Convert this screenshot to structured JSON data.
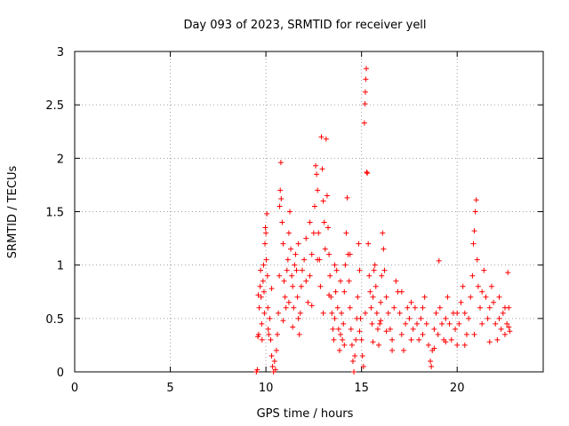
{
  "chart_data": {
    "type": "scatter",
    "title": "Day 093 of 2023, SRMTID for receiver yell",
    "xlabel": "GPS time / hours",
    "ylabel": "SRMTID / TECUs",
    "xlim": [
      0,
      24.5
    ],
    "ylim": [
      0,
      3
    ],
    "xticks": [
      0,
      5,
      10,
      15,
      20
    ],
    "yticks": [
      0,
      0.5,
      1,
      1.5,
      2,
      2.5,
      3
    ],
    "ytick_labels": [
      "0",
      "0.5",
      "1",
      "1.5",
      "2",
      "2.5",
      "3"
    ],
    "grid": true,
    "marker": "+",
    "series_color": "#ff0000",
    "series": [
      {
        "name": "SRMTID",
        "points": [
          [
            9.5,
            0.0
          ],
          [
            9.55,
            0.02
          ],
          [
            9.58,
            0.33
          ],
          [
            9.62,
            0.35
          ],
          [
            9.65,
            0.6
          ],
          [
            9.7,
            0.8
          ],
          [
            9.72,
            0.95
          ],
          [
            9.75,
            0.7
          ],
          [
            9.78,
            0.45
          ],
          [
            9.8,
            0.3
          ],
          [
            9.85,
            0.85
          ],
          [
            9.88,
            1.0
          ],
          [
            9.9,
            0.75
          ],
          [
            9.92,
            0.55
          ],
          [
            9.95,
            1.2
          ],
          [
            9.97,
            1.35
          ],
          [
            10.0,
            1.3
          ],
          [
            10.02,
            1.05
          ],
          [
            10.05,
            1.48
          ],
          [
            10.08,
            0.9
          ],
          [
            10.1,
            0.6
          ],
          [
            10.12,
            0.4
          ],
          [
            10.15,
            0.35
          ],
          [
            10.2,
            0.5
          ],
          [
            10.25,
            0.3
          ],
          [
            10.3,
            0.15
          ],
          [
            10.35,
            0.05
          ],
          [
            10.4,
            0.0
          ],
          [
            10.45,
            0.1
          ],
          [
            10.5,
            0.02
          ],
          [
            10.55,
            0.2
          ],
          [
            10.6,
            0.35
          ],
          [
            10.65,
            0.55
          ],
          [
            10.7,
            0.9
          ],
          [
            10.72,
            1.55
          ],
          [
            10.75,
            1.7
          ],
          [
            10.78,
            1.96
          ],
          [
            10.8,
            1.62
          ],
          [
            10.85,
            1.4
          ],
          [
            10.9,
            1.2
          ],
          [
            10.95,
            0.85
          ],
          [
            11.0,
            0.7
          ],
          [
            11.05,
            0.6
          ],
          [
            11.1,
            0.95
          ],
          [
            11.15,
            1.05
          ],
          [
            11.2,
            1.3
          ],
          [
            11.25,
            1.5
          ],
          [
            11.3,
            1.15
          ],
          [
            11.35,
            0.9
          ],
          [
            11.4,
            0.8
          ],
          [
            11.45,
            0.6
          ],
          [
            11.5,
            1.0
          ],
          [
            11.55,
            1.1
          ],
          [
            11.6,
            0.95
          ],
          [
            11.65,
            0.7
          ],
          [
            11.7,
            0.5
          ],
          [
            11.75,
            0.35
          ],
          [
            11.8,
            0.55
          ],
          [
            11.85,
            0.8
          ],
          [
            11.9,
            0.95
          ],
          [
            12.0,
            1.05
          ],
          [
            12.1,
            0.85
          ],
          [
            12.2,
            0.65
          ],
          [
            12.3,
            0.9
          ],
          [
            12.4,
            1.1
          ],
          [
            12.5,
            1.3
          ],
          [
            12.55,
            1.55
          ],
          [
            12.6,
            1.93
          ],
          [
            12.65,
            1.85
          ],
          [
            12.7,
            1.7
          ],
          [
            12.75,
            1.3
          ],
          [
            12.8,
            1.05
          ],
          [
            12.85,
            0.8
          ],
          [
            12.9,
            2.2
          ],
          [
            12.95,
            1.9
          ],
          [
            13.0,
            1.6
          ],
          [
            13.05,
            1.4
          ],
          [
            13.1,
            1.15
          ],
          [
            13.15,
            2.18
          ],
          [
            13.2,
            1.65
          ],
          [
            13.25,
            1.35
          ],
          [
            13.3,
            1.1
          ],
          [
            13.35,
            0.9
          ],
          [
            13.4,
            0.7
          ],
          [
            13.45,
            0.55
          ],
          [
            13.5,
            0.4
          ],
          [
            13.55,
            0.3
          ],
          [
            13.6,
            0.5
          ],
          [
            13.65,
            0.75
          ],
          [
            13.7,
            0.95
          ],
          [
            13.75,
            0.6
          ],
          [
            13.8,
            0.4
          ],
          [
            13.85,
            0.2
          ],
          [
            13.9,
            0.35
          ],
          [
            13.95,
            0.55
          ],
          [
            14.0,
            0.3
          ],
          [
            14.05,
            0.45
          ],
          [
            14.1,
            0.75
          ],
          [
            14.15,
            1.0
          ],
          [
            14.2,
            1.3
          ],
          [
            14.25,
            1.63
          ],
          [
            14.3,
            1.1
          ],
          [
            14.35,
            0.85
          ],
          [
            14.4,
            0.6
          ],
          [
            14.45,
            0.4
          ],
          [
            14.5,
            0.25
          ],
          [
            14.55,
            0.1
          ],
          [
            14.6,
            0.0
          ],
          [
            14.65,
            0.15
          ],
          [
            14.7,
            0.3
          ],
          [
            14.75,
            0.5
          ],
          [
            14.8,
            0.7
          ],
          [
            14.85,
            1.2
          ],
          [
            14.9,
            0.95
          ],
          [
            14.95,
            0.5
          ],
          [
            15.0,
            0.3
          ],
          [
            15.05,
            0.15
          ],
          [
            15.1,
            0.05
          ],
          [
            15.15,
            2.33
          ],
          [
            15.18,
            2.51
          ],
          [
            15.2,
            2.62
          ],
          [
            15.22,
            2.74
          ],
          [
            15.25,
            2.84
          ],
          [
            15.27,
            1.87
          ],
          [
            15.3,
            1.86
          ],
          [
            15.35,
            1.2
          ],
          [
            15.4,
            0.9
          ],
          [
            15.45,
            0.75
          ],
          [
            15.5,
            0.6
          ],
          [
            15.55,
            0.45
          ],
          [
            15.6,
            0.7
          ],
          [
            15.65,
            0.95
          ],
          [
            15.7,
            1.0
          ],
          [
            15.75,
            0.8
          ],
          [
            15.8,
            0.55
          ],
          [
            15.85,
            0.4
          ],
          [
            15.9,
            0.25
          ],
          [
            15.95,
            0.45
          ],
          [
            16.0,
            0.65
          ],
          [
            16.05,
            0.9
          ],
          [
            16.1,
            1.3
          ],
          [
            16.15,
            1.15
          ],
          [
            16.2,
            0.95
          ],
          [
            16.3,
            0.7
          ],
          [
            16.4,
            0.55
          ],
          [
            16.5,
            0.4
          ],
          [
            16.6,
            0.3
          ],
          [
            16.7,
            0.6
          ],
          [
            16.8,
            0.85
          ],
          [
            16.9,
            0.75
          ],
          [
            17.0,
            0.55
          ],
          [
            17.1,
            0.35
          ],
          [
            17.2,
            0.2
          ],
          [
            17.3,
            0.45
          ],
          [
            17.4,
            0.6
          ],
          [
            17.5,
            0.5
          ],
          [
            17.6,
            0.3
          ],
          [
            17.7,
            0.4
          ],
          [
            17.8,
            0.6
          ],
          [
            17.9,
            0.45
          ],
          [
            18.0,
            0.3
          ],
          [
            18.1,
            0.5
          ],
          [
            18.2,
            0.6
          ],
          [
            18.3,
            0.7
          ],
          [
            18.4,
            0.45
          ],
          [
            18.5,
            0.25
          ],
          [
            18.6,
            0.1
          ],
          [
            18.65,
            0.05
          ],
          [
            18.7,
            0.2
          ],
          [
            18.8,
            0.4
          ],
          [
            18.9,
            0.55
          ],
          [
            19.0,
            0.35
          ],
          [
            19.05,
            1.04
          ],
          [
            19.1,
            0.6
          ],
          [
            19.2,
            0.45
          ],
          [
            19.3,
            0.3
          ],
          [
            19.4,
            0.5
          ],
          [
            19.5,
            0.7
          ],
          [
            19.6,
            0.45
          ],
          [
            19.7,
            0.3
          ],
          [
            19.8,
            0.55
          ],
          [
            19.9,
            0.4
          ],
          [
            20.0,
            0.25
          ],
          [
            20.1,
            0.45
          ],
          [
            20.2,
            0.65
          ],
          [
            20.3,
            0.8
          ],
          [
            20.4,
            0.55
          ],
          [
            20.5,
            0.35
          ],
          [
            20.6,
            0.5
          ],
          [
            20.7,
            0.7
          ],
          [
            20.8,
            0.9
          ],
          [
            20.85,
            1.2
          ],
          [
            20.9,
            1.32
          ],
          [
            20.95,
            1.5
          ],
          [
            21.0,
            1.61
          ],
          [
            21.05,
            1.05
          ],
          [
            21.1,
            0.8
          ],
          [
            21.2,
            0.6
          ],
          [
            21.3,
            0.75
          ],
          [
            21.4,
            0.95
          ],
          [
            21.5,
            0.7
          ],
          [
            21.6,
            0.5
          ],
          [
            21.7,
            0.6
          ],
          [
            21.8,
            0.8
          ],
          [
            21.9,
            0.65
          ],
          [
            22.0,
            0.45
          ],
          [
            22.1,
            0.3
          ],
          [
            22.2,
            0.5
          ],
          [
            22.3,
            0.4
          ],
          [
            22.4,
            0.55
          ],
          [
            22.5,
            0.35
          ],
          [
            22.6,
            0.45
          ],
          [
            22.65,
            0.93
          ],
          [
            22.7,
            0.6
          ],
          [
            22.75,
            0.38
          ],
          [
            9.6,
            0.72
          ],
          [
            10.3,
            0.78
          ],
          [
            11.2,
            0.65
          ],
          [
            11.7,
            1.2
          ],
          [
            12.1,
            1.25
          ],
          [
            12.3,
            1.4
          ],
          [
            12.7,
            1.05
          ],
          [
            13.0,
            0.55
          ],
          [
            13.3,
            0.72
          ],
          [
            13.6,
            1.0
          ],
          [
            13.9,
            0.85
          ],
          [
            14.1,
            0.25
          ],
          [
            14.4,
            1.1
          ],
          [
            14.9,
            0.38
          ],
          [
            15.6,
            0.28
          ],
          [
            16.0,
            0.48
          ],
          [
            16.6,
            0.2
          ],
          [
            17.1,
            0.75
          ],
          [
            17.6,
            0.65
          ],
          [
            18.2,
            0.35
          ],
          [
            18.8,
            0.22
          ],
          [
            19.4,
            0.28
          ],
          [
            20.0,
            0.55
          ],
          [
            20.4,
            0.25
          ],
          [
            20.9,
            0.35
          ],
          [
            21.3,
            0.45
          ],
          [
            21.7,
            0.28
          ],
          [
            22.2,
            0.7
          ],
          [
            22.5,
            0.6
          ],
          [
            22.7,
            0.42
          ],
          [
            10.9,
            0.48
          ],
          [
            11.4,
            0.42
          ],
          [
            12.4,
            0.62
          ],
          [
            15.2,
            0.55
          ],
          [
            16.3,
            0.38
          ]
        ]
      }
    ]
  }
}
